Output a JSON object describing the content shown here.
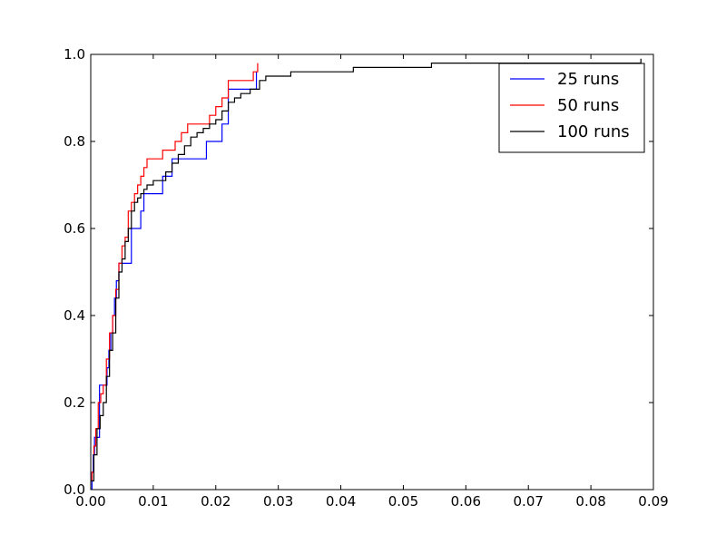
{
  "chart_data": {
    "type": "line",
    "title": "",
    "xlabel": "",
    "ylabel": "",
    "xlim": [
      0.0,
      0.09
    ],
    "ylim": [
      0.0,
      1.0
    ],
    "grid": false,
    "legend_position": "top-right",
    "x_ticks": [
      {
        "value": 0.0,
        "label": "0.00"
      },
      {
        "value": 0.01,
        "label": "0.01"
      },
      {
        "value": 0.02,
        "label": "0.02"
      },
      {
        "value": 0.03,
        "label": "0.03"
      },
      {
        "value": 0.04,
        "label": "0.04"
      },
      {
        "value": 0.05,
        "label": "0.05"
      },
      {
        "value": 0.06,
        "label": "0.06"
      },
      {
        "value": 0.07,
        "label": "0.07"
      },
      {
        "value": 0.08,
        "label": "0.08"
      },
      {
        "value": 0.09,
        "label": "0.09"
      }
    ],
    "y_ticks": [
      {
        "value": 0.0,
        "label": "0.0"
      },
      {
        "value": 0.2,
        "label": "0.2"
      },
      {
        "value": 0.4,
        "label": "0.4"
      },
      {
        "value": 0.6,
        "label": "0.6"
      },
      {
        "value": 0.8,
        "label": "0.8"
      },
      {
        "value": 1.0,
        "label": "1.0"
      }
    ],
    "series": [
      {
        "name": "25 runs",
        "color": "#0000ff",
        "x": [
          0.0,
          0.0002,
          0.0004,
          0.0006,
          0.001,
          0.0014,
          0.0018,
          0.0023,
          0.0026,
          0.0029,
          0.0032,
          0.0035,
          0.0038,
          0.0041,
          0.0045,
          0.005,
          0.0055,
          0.006,
          0.0065,
          0.0068,
          0.008,
          0.0085,
          0.009,
          0.01,
          0.0115,
          0.013,
          0.014,
          0.016,
          0.0175,
          0.0185,
          0.02,
          0.021,
          0.022,
          0.024,
          0.0255,
          0.0265
        ],
        "y": [
          0.0,
          0.04,
          0.08,
          0.12,
          0.12,
          0.24,
          0.24,
          0.24,
          0.28,
          0.32,
          0.36,
          0.4,
          0.44,
          0.48,
          0.52,
          0.52,
          0.52,
          0.52,
          0.6,
          0.6,
          0.64,
          0.68,
          0.68,
          0.68,
          0.72,
          0.76,
          0.76,
          0.76,
          0.76,
          0.8,
          0.8,
          0.84,
          0.92,
          0.92,
          0.92,
          0.96
        ]
      },
      {
        "name": "50 runs",
        "color": "#ff0000",
        "x": [
          0.0,
          0.0002,
          0.0005,
          0.0008,
          0.0012,
          0.0016,
          0.002,
          0.0025,
          0.003,
          0.0035,
          0.004,
          0.0045,
          0.005,
          0.0055,
          0.006,
          0.0065,
          0.007,
          0.0075,
          0.008,
          0.0085,
          0.009,
          0.0095,
          0.0105,
          0.0115,
          0.0125,
          0.0135,
          0.0145,
          0.0155,
          0.0165,
          0.0175,
          0.019,
          0.02,
          0.021,
          0.022,
          0.024,
          0.026,
          0.0267
        ],
        "y": [
          0.02,
          0.04,
          0.1,
          0.14,
          0.2,
          0.22,
          0.24,
          0.3,
          0.36,
          0.4,
          0.46,
          0.52,
          0.56,
          0.58,
          0.64,
          0.66,
          0.68,
          0.7,
          0.72,
          0.74,
          0.76,
          0.76,
          0.76,
          0.78,
          0.78,
          0.8,
          0.82,
          0.84,
          0.84,
          0.84,
          0.86,
          0.88,
          0.9,
          0.94,
          0.94,
          0.96,
          0.98
        ]
      },
      {
        "name": "100 runs",
        "color": "#000000",
        "x": [
          0.0,
          0.0005,
          0.001,
          0.0015,
          0.002,
          0.0025,
          0.003,
          0.0035,
          0.004,
          0.0045,
          0.005,
          0.0055,
          0.006,
          0.0065,
          0.007,
          0.0075,
          0.008,
          0.0085,
          0.009,
          0.01,
          0.011,
          0.012,
          0.013,
          0.014,
          0.015,
          0.016,
          0.017,
          0.018,
          0.019,
          0.02,
          0.021,
          0.022,
          0.023,
          0.024,
          0.0255,
          0.027,
          0.028,
          0.032,
          0.042,
          0.0545,
          0.07,
          0.08,
          0.0875,
          0.088
        ],
        "y": [
          0.02,
          0.08,
          0.14,
          0.17,
          0.2,
          0.26,
          0.32,
          0.36,
          0.44,
          0.5,
          0.53,
          0.57,
          0.6,
          0.64,
          0.66,
          0.67,
          0.68,
          0.69,
          0.7,
          0.71,
          0.71,
          0.73,
          0.75,
          0.77,
          0.79,
          0.81,
          0.82,
          0.83,
          0.84,
          0.85,
          0.87,
          0.89,
          0.9,
          0.91,
          0.92,
          0.94,
          0.95,
          0.96,
          0.97,
          0.98,
          0.98,
          0.98,
          0.98,
          0.99
        ]
      }
    ]
  }
}
